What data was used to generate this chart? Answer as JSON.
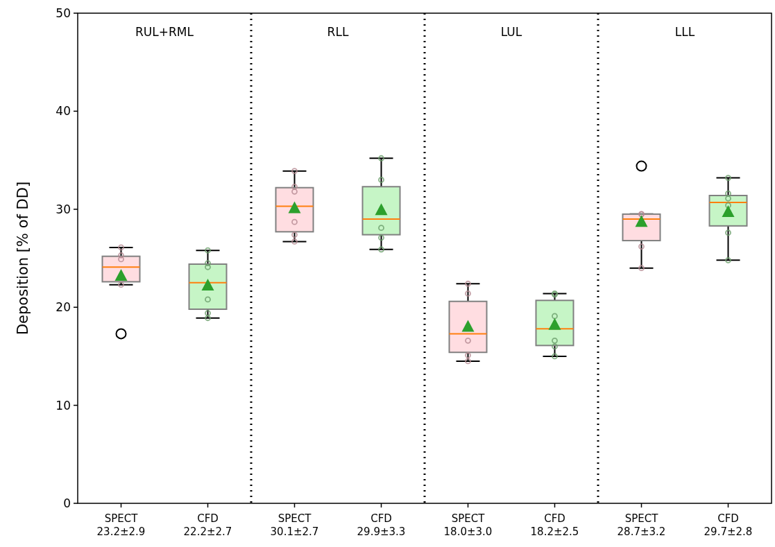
{
  "chart_data": {
    "type": "box",
    "ylabel": "Deposition [% of DD]",
    "categories": [
      "SPECT\n23.2±2.9",
      "CFD\n22.2±2.7",
      "SPECT\n30.1±2.7",
      "CFD\n29.9±3.3",
      "SPECT\n18.0±3.0",
      "CFD\n18.2±2.5",
      "SPECT\n28.7±3.2",
      "CFD\n29.7±2.8"
    ],
    "colors": [
      "#ffdde1",
      "#c6f5c6",
      "#ffdde1",
      "#c6f5c6",
      "#ffdde1",
      "#c6f5c6",
      "#ffdde1",
      "#c6f5c6"
    ],
    "boxes": [
      {
        "low": 22.3,
        "q1": 22.6,
        "median": 24.1,
        "q3": 25.2,
        "high": 26.1,
        "mean": 23.2,
        "outliers": [
          17.3
        ]
      },
      {
        "low": 18.9,
        "q1": 19.8,
        "median": 22.5,
        "q3": 24.4,
        "high": 25.8,
        "mean": 22.2
      },
      {
        "low": 26.7,
        "q1": 27.7,
        "median": 30.3,
        "q3": 32.2,
        "high": 33.9,
        "mean": 30.1
      },
      {
        "low": 25.9,
        "q1": 27.4,
        "median": 29.0,
        "q3": 32.3,
        "high": 35.2,
        "mean": 29.9
      },
      {
        "low": 14.5,
        "q1": 15.4,
        "median": 17.3,
        "q3": 20.6,
        "high": 22.4,
        "mean": 18.0
      },
      {
        "low": 15.0,
        "q1": 16.1,
        "median": 17.8,
        "q3": 20.7,
        "high": 21.4,
        "mean": 18.2
      },
      {
        "low": 24.0,
        "q1": 26.8,
        "median": 29.0,
        "q3": 29.5,
        "high": 29.5,
        "mean": 28.7,
        "outliers": [
          34.4
        ]
      },
      {
        "low": 24.8,
        "q1": 28.3,
        "median": 30.7,
        "q3": 31.4,
        "high": 33.2,
        "mean": 29.7
      }
    ],
    "series": [
      {
        "type": "scatter",
        "color": "#b58a92",
        "x": [
          "SPECT\n23.2±2.9",
          "SPECT\n23.2±2.9",
          "SPECT\n23.2±2.9",
          "SPECT\n23.2±2.9",
          "SPECT\n30.1±2.7",
          "SPECT\n30.1±2.7",
          "SPECT\n30.1±2.7",
          "SPECT\n30.1±2.7",
          "SPECT\n30.1±2.7",
          "SPECT\n30.1±2.7",
          "SPECT\n18.0±3.0",
          "SPECT\n18.0±3.0",
          "SPECT\n18.0±3.0",
          "SPECT\n18.0±3.0",
          "SPECT\n18.0±3.0",
          "SPECT\n28.7±3.2",
          "SPECT\n28.7±3.2",
          "SPECT\n28.7±3.2",
          "SPECT\n28.7±3.2"
        ],
        "values": [
          26.1,
          25.3,
          24.9,
          22.3,
          33.9,
          32.3,
          31.8,
          28.7,
          27.4,
          26.7,
          22.4,
          21.4,
          16.6,
          15.1,
          14.5,
          29.5,
          29.5,
          26.2,
          24.0
        ]
      },
      {
        "type": "scatter",
        "color": "#6a9e6a",
        "x": [
          "CFD\n22.2±2.7",
          "CFD\n22.2±2.7",
          "CFD\n22.2±2.7",
          "CFD\n22.2±2.7",
          "CFD\n22.2±2.7",
          "CFD\n22.2±2.7",
          "CFD\n29.9±3.3",
          "CFD\n29.9±3.3",
          "CFD\n29.9±3.3",
          "CFD\n29.9±3.3",
          "CFD\n29.9±3.3",
          "CFD\n18.2±2.5",
          "CFD\n18.2±2.5",
          "CFD\n18.2±2.5",
          "CFD\n18.2±2.5",
          "CFD\n18.2±2.5",
          "CFD\n18.2±2.5",
          "CFD\n29.7±2.8",
          "CFD\n29.7±2.8",
          "CFD\n29.7±2.8",
          "CFD\n29.7±2.8",
          "CFD\n29.7±2.8",
          "CFD\n29.7±2.8"
        ],
        "values": [
          25.8,
          24.5,
          24.1,
          20.8,
          19.4,
          18.9,
          35.2,
          33.0,
          28.1,
          27.1,
          25.9,
          21.4,
          21.3,
          19.1,
          16.6,
          16.0,
          15.0,
          33.2,
          31.6,
          31.1,
          30.4,
          27.6,
          24.8
        ]
      }
    ],
    "annotations": [
      "RUL+RML",
      "RLL",
      "LUL",
      "LLL"
    ],
    "ylim": [
      0,
      50
    ],
    "yticks": [
      0,
      10,
      20,
      30,
      40,
      50
    ],
    "grid": false,
    "marker": "circle"
  }
}
